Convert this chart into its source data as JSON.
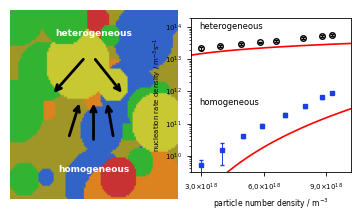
{
  "heterogeneous_x": [
    3e+18,
    3.9e+18,
    4.9e+18,
    5.8e+18,
    6.6e+18,
    7.9e+18,
    8.8e+18,
    9.3e+18
  ],
  "heterogeneous_y": [
    22000000000000.0,
    26000000000000.0,
    30000000000000.0,
    33500000000000.0,
    38000000000000.0,
    46000000000000.0,
    53000000000000.0,
    59000000000000.0
  ],
  "heterogeneous_yerr": [
    2500000000000.0,
    2500000000000.0,
    2000000000000.0,
    2000000000000.0,
    2500000000000.0,
    3000000000000.0,
    3500000000000.0,
    4500000000000.0
  ],
  "homogeneous_x": [
    3e+18,
    4e+18,
    5e+18,
    5.9e+18,
    7e+18,
    8e+18,
    8.8e+18,
    9.3e+18
  ],
  "homogeneous_y": [
    5000000000.0,
    15000000000.0,
    40000000000.0,
    85000000000.0,
    190000000000.0,
    350000000000.0,
    650000000000.0,
    900000000000.0
  ],
  "homogeneous_yerr": [
    2500000000.0,
    10000000000.0,
    5000000000.0,
    10000000000.0,
    25000000000.0,
    40000000000.0,
    60000000000.0,
    80000000000.0
  ],
  "xlabel": "particle number density / m$^{-3}$",
  "ylabel": "nucleation rate density / m$^{-3}$s$^{-1}$",
  "label_heterogeneous": "heterogeneous",
  "label_homogeneous": "homogeneous",
  "xlim": [
    2.5e+18,
    1.02e+19
  ],
  "ylim_log": [
    3000000000.0,
    200000000000000.0
  ],
  "xticks": [
    3e+18,
    6e+18,
    9e+18
  ],
  "fit_color": "#ff0000",
  "hetero_marker_color": "#000000",
  "homo_marker_color": "#1a3ee8",
  "background_color": "#ffffff",
  "photo_color": "#c8b060"
}
